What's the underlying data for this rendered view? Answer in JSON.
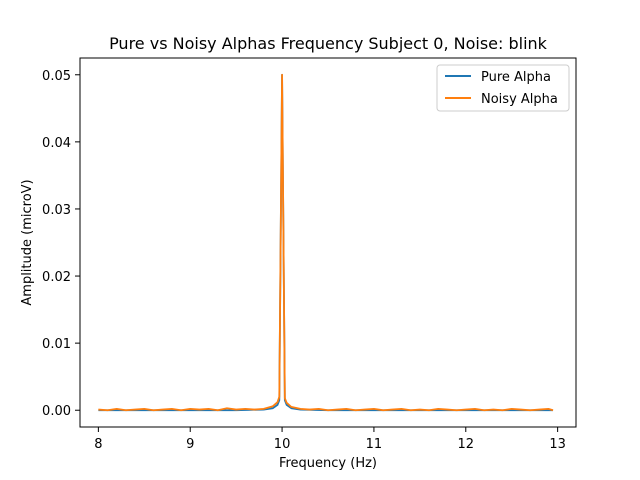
{
  "chart_data": {
    "type": "line",
    "title": "Pure vs Noisy Alphas Frequency Subject 0, Noise: blink",
    "xlabel": "Frequency (Hz)",
    "ylabel": "Amplitude (microV)",
    "xlim": [
      7.8,
      13.2
    ],
    "ylim": [
      -0.0025,
      0.0525
    ],
    "xticks": [
      8,
      9,
      10,
      11,
      12,
      13
    ],
    "xtick_labels": [
      "8",
      "9",
      "10",
      "11",
      "12",
      "13"
    ],
    "yticks": [
      0.0,
      0.01,
      0.02,
      0.03,
      0.04,
      0.05
    ],
    "ytick_labels": [
      "0.00",
      "0.01",
      "0.02",
      "0.03",
      "0.04",
      "0.05"
    ],
    "grid": false,
    "legend_position": "top-right",
    "series": [
      {
        "name": "Pure Alpha",
        "color": "#1f77b4",
        "x": [
          8.0,
          8.5,
          9.0,
          9.5,
          9.8,
          9.9,
          9.95,
          9.97,
          10.0,
          10.03,
          10.05,
          10.1,
          10.2,
          10.5,
          11.0,
          11.5,
          12.0,
          12.5,
          12.95
        ],
        "y": [
          0.0,
          0.0,
          0.0,
          0.0,
          0.0001,
          0.0003,
          0.0008,
          0.0015,
          0.05,
          0.0015,
          0.0008,
          0.0003,
          0.0001,
          0.0,
          0.0,
          0.0,
          0.0,
          0.0,
          0.0
        ]
      },
      {
        "name": "Noisy Alpha",
        "color": "#ff7f0e",
        "x": [
          8.0,
          8.1,
          8.2,
          8.3,
          8.4,
          8.5,
          8.6,
          8.7,
          8.8,
          8.9,
          9.0,
          9.1,
          9.2,
          9.3,
          9.4,
          9.5,
          9.6,
          9.7,
          9.8,
          9.9,
          9.95,
          9.97,
          10.0,
          10.03,
          10.05,
          10.1,
          10.2,
          10.3,
          10.4,
          10.5,
          10.6,
          10.7,
          10.8,
          10.9,
          11.0,
          11.1,
          11.2,
          11.3,
          11.4,
          11.5,
          11.6,
          11.7,
          11.8,
          11.9,
          12.0,
          12.1,
          12.2,
          12.3,
          12.4,
          12.5,
          12.6,
          12.7,
          12.8,
          12.9,
          12.95
        ],
        "y": [
          0.0001,
          0.0,
          0.0002,
          0.0,
          0.0001,
          0.0002,
          0.0,
          0.0001,
          0.0002,
          0.0,
          0.0002,
          0.0001,
          0.0002,
          0.0,
          0.0003,
          0.0001,
          0.0002,
          0.0001,
          0.0002,
          0.0006,
          0.0012,
          0.002,
          0.05,
          0.0018,
          0.0011,
          0.0005,
          0.0002,
          0.0001,
          0.0002,
          0.0,
          0.0001,
          0.0002,
          0.0,
          0.0001,
          0.0002,
          0.0,
          0.0001,
          0.0002,
          0.0,
          0.0001,
          0.0,
          0.0002,
          0.0001,
          0.0,
          0.0001,
          0.0002,
          0.0,
          0.0001,
          0.0,
          0.0002,
          0.0001,
          0.0,
          0.0001,
          0.0002,
          0.0
        ]
      }
    ]
  }
}
